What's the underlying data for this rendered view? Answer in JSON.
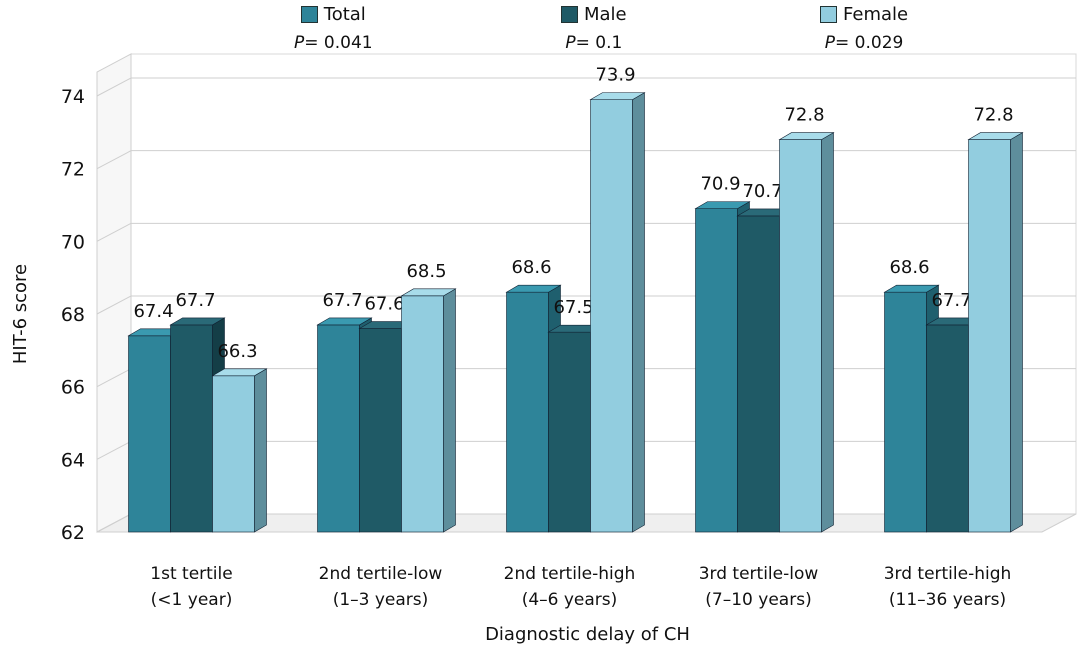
{
  "chart_data": {
    "type": "bar",
    "title": "",
    "xlabel": "Diagnostic delay of CH",
    "ylabel": "HIT-6 score",
    "ylim": [
      62,
      74
    ],
    "yticks": [
      "62",
      "64",
      "66",
      "68",
      "70",
      "72",
      "74"
    ],
    "categories": [
      {
        "line1": "1st tertile",
        "line2": "(<1 year)"
      },
      {
        "line1": "2nd tertile-low",
        "line2": "(1–3 years)"
      },
      {
        "line1": "2nd tertile-high",
        "line2": "(4–6 years)"
      },
      {
        "line1": "3rd tertile-low",
        "line2": "(7–10 years)"
      },
      {
        "line1": "3rd tertile-high",
        "line2": "(11–36 years)"
      }
    ],
    "series": [
      {
        "name": "Total",
        "color": "#2e8499",
        "side": "#1f5f6e",
        "top": "#3a9ab0",
        "values": [
          67.4,
          67.7,
          68.6,
          70.9,
          68.6
        ],
        "labels": [
          "67.4",
          "67.7",
          "68.6",
          "70.9",
          "68.6"
        ]
      },
      {
        "name": "Male",
        "color": "#1f5a66",
        "side": "#143e47",
        "top": "#2a6a78",
        "values": [
          67.7,
          67.6,
          67.5,
          70.7,
          67.7
        ],
        "labels": [
          "67.7",
          "67.6",
          "67.5",
          "70.7",
          "67.7"
        ]
      },
      {
        "name": "Female",
        "color": "#92cddf",
        "side": "#5e8e9c",
        "top": "#a8dcea",
        "values": [
          66.3,
          68.5,
          73.9,
          72.8,
          72.8
        ],
        "labels": [
          "66.3",
          "68.5",
          "73.9",
          "72.8",
          "72.8"
        ]
      }
    ],
    "p_values": [
      {
        "label": "P",
        "text": "= 0.041"
      },
      {
        "label": "P",
        "text": "= 0.1"
      },
      {
        "label": "P",
        "text": "= 0.029"
      }
    ]
  }
}
